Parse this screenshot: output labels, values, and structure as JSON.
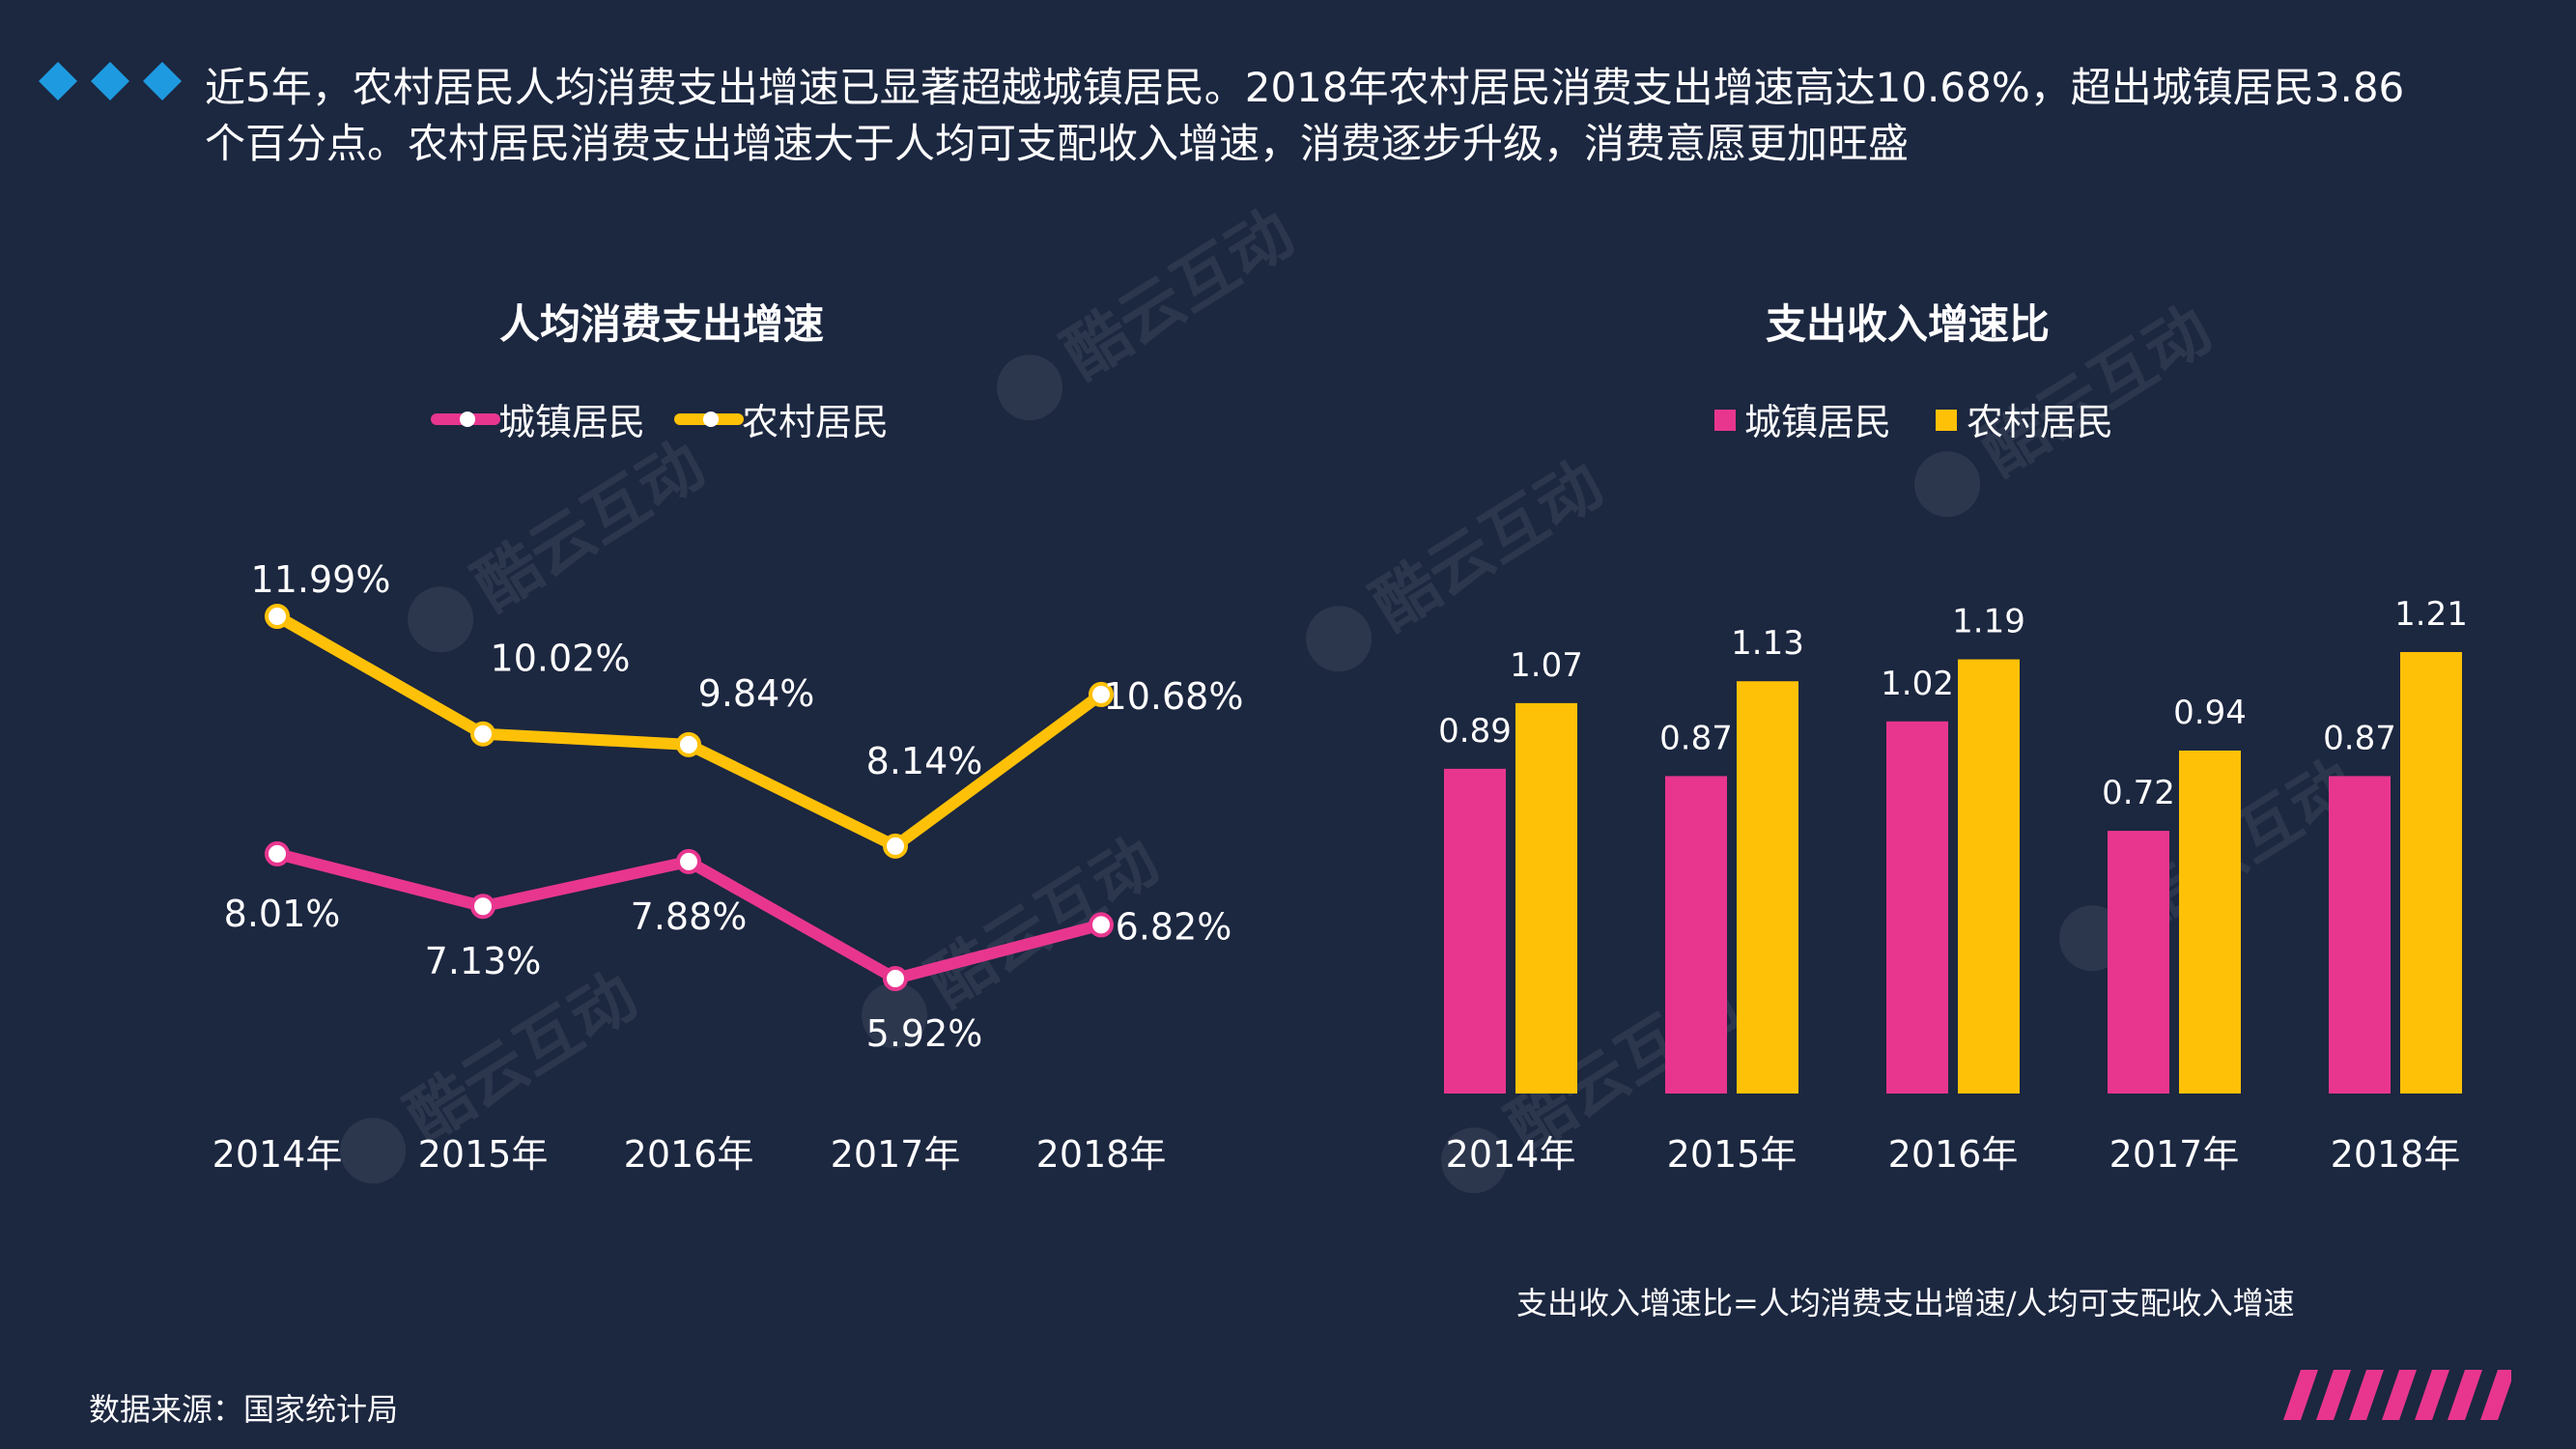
{
  "header": {
    "text": "近5年，农村居民人均消费支出增速已显著超越城镇居民。2018年农村居民消费支出增速高达10.68%，超出城镇居民3.86个百分点。农村居民消费支出增速大于人均可支配收入增速，消费逐步升级，消费意愿更加旺盛"
  },
  "colors": {
    "background": "#1c2740",
    "urban": "#e8368f",
    "rural": "#ffc107",
    "diamond": "#1e9be0"
  },
  "watermark_text": "酷云互动",
  "chart_data": [
    {
      "type": "line",
      "title": "人均消费支出增速",
      "categories": [
        "2014年",
        "2015年",
        "2016年",
        "2017年",
        "2018年"
      ],
      "series": [
        {
          "name": "城镇居民",
          "values": [
            8.01,
            7.13,
            7.88,
            5.92,
            6.82
          ],
          "labels": [
            "8.01%",
            "7.13%",
            "7.88%",
            "5.92%",
            "6.82%"
          ]
        },
        {
          "name": "农村居民",
          "values": [
            11.99,
            10.02,
            9.84,
            8.14,
            10.68
          ],
          "labels": [
            "11.99%",
            "10.02%",
            "9.84%",
            "8.14%",
            "10.68%"
          ]
        }
      ],
      "ylim": [
        4,
        13
      ],
      "legend": "top"
    },
    {
      "type": "bar",
      "title": "支出收入增速比",
      "categories": [
        "2014年",
        "2015年",
        "2016年",
        "2017年",
        "2018年"
      ],
      "series": [
        {
          "name": "城镇居民",
          "values": [
            0.89,
            0.87,
            1.02,
            0.72,
            0.87
          ],
          "labels": [
            "0.89",
            "0.87",
            "1.02",
            "0.72",
            "0.87"
          ]
        },
        {
          "name": "农村居民",
          "values": [
            1.07,
            1.13,
            1.19,
            0.94,
            1.21
          ],
          "labels": [
            "1.07",
            "1.13",
            "1.19",
            "0.94",
            "1.21"
          ]
        }
      ],
      "ylim": [
        0,
        1.21
      ],
      "legend": "top"
    }
  ],
  "footnote": "支出收入增速比=人均消费支出增速/人均可支配收入增速",
  "source": "数据来源：国家统计局"
}
